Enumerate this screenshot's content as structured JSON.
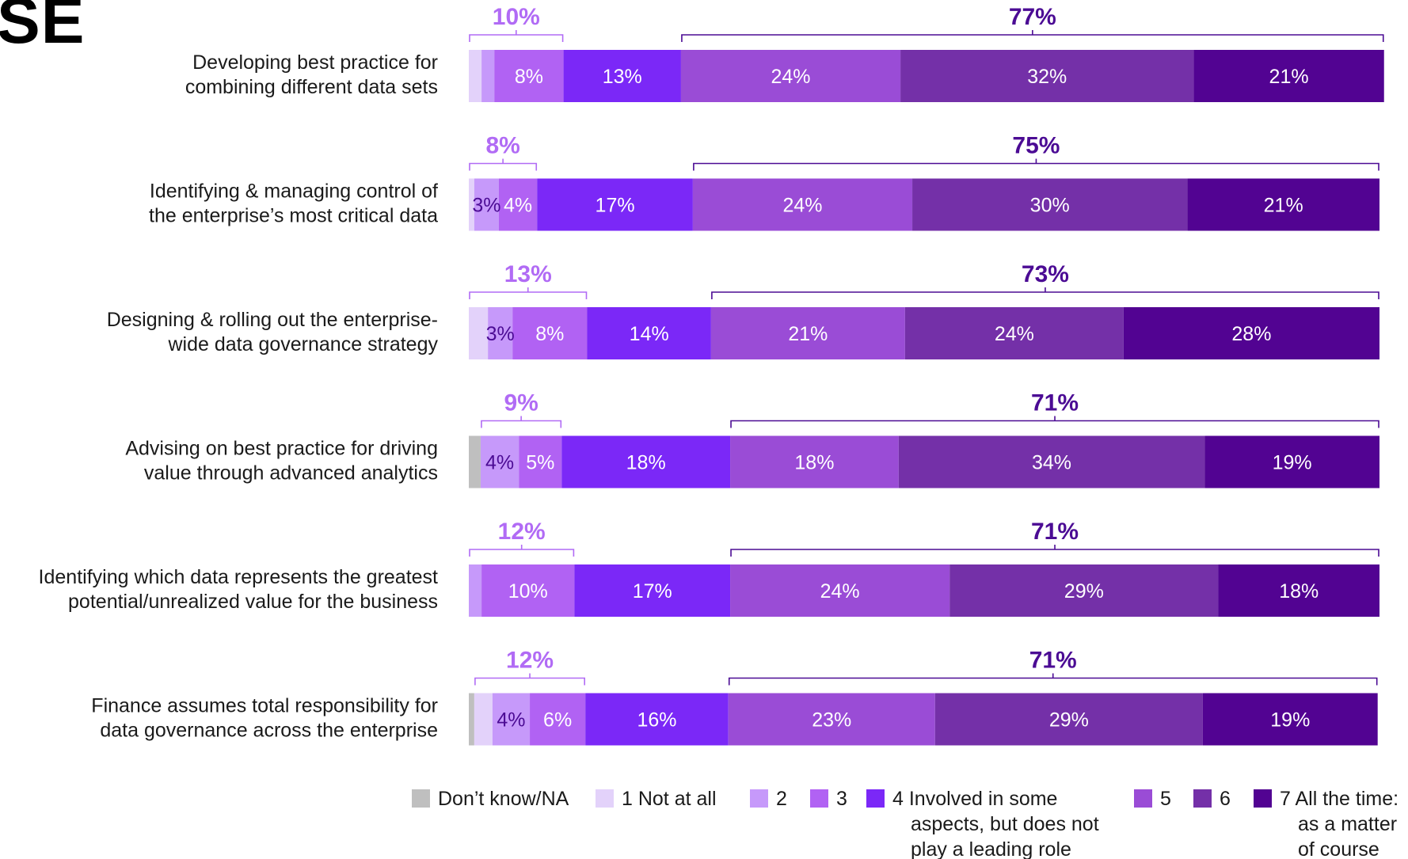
{
  "corner_title": "SE",
  "chart_data": {
    "type": "bar",
    "orientation": "horizontal",
    "stacked": true,
    "categories": [
      [
        "Developing best practice for",
        "combining different data sets"
      ],
      [
        "Identifying & managing control of",
        "the enterprise’s most critical data"
      ],
      [
        "Designing & rolling out the enterprise-",
        "wide data governance strategy"
      ],
      [
        "Advising on best practice for driving",
        "value through advanced analytics"
      ],
      [
        "Identifying which data represents the greatest",
        "potential/unrealized value for the business"
      ],
      [
        "Finance assumes total responsibility for",
        "data governance across the enterprise"
      ]
    ],
    "xlim": [
      0,
      100
    ],
    "series": [
      {
        "name": "Don’t know/NA",
        "color": "#bfbfbf",
        "values": [
          0,
          0,
          0,
          1.3,
          0,
          0.6
        ]
      },
      {
        "name": "1 Not at all",
        "color": "#e3d2fa",
        "values": [
          1.4,
          0.6,
          2.1,
          0,
          0,
          2
        ]
      },
      {
        "name": "2",
        "color": "#c699fa",
        "values": [
          1.4,
          2.7,
          2.7,
          4.2,
          1.4,
          4.1
        ]
      },
      {
        "name": "3",
        "color": "#b162f3",
        "values": [
          7.6,
          4.2,
          8.2,
          4.7,
          10.2,
          6.1
        ]
      },
      {
        "name": "4 Involved in some aspects, but does not play a leading role",
        "color": "#7b28f7",
        "values": [
          12.9,
          17.1,
          13.6,
          18.5,
          17.1,
          15.7
        ]
      },
      {
        "name": "5",
        "color": "#9a4cd6",
        "values": [
          24.1,
          24.1,
          21.3,
          18.5,
          24.1,
          22.7
        ]
      },
      {
        "name": "6",
        "color": "#7430a8",
        "values": [
          32.2,
          30.2,
          24,
          33.6,
          29.5,
          29.4
        ]
      },
      {
        "name": "7 All the time: as a matter of course",
        "color": "#520392",
        "values": [
          20.9,
          21.1,
          28.1,
          19.2,
          17.7,
          19.2
        ]
      }
    ],
    "segment_labels": [
      [
        "",
        "",
        "8%",
        "13%",
        "24%",
        "32%",
        "21%"
      ],
      [
        "",
        "3%",
        "4%",
        "17%",
        "24%",
        "30%",
        "21%"
      ],
      [
        "",
        "3%",
        "8%",
        "14%",
        "21%",
        "24%",
        "28%"
      ],
      [
        "",
        "4%",
        "5%",
        "18%",
        "18%",
        "34%",
        "19%"
      ],
      [
        "",
        "",
        "10%",
        "17%",
        "24%",
        "29%",
        "18%"
      ],
      [
        "",
        "4%",
        "6%",
        "16%",
        "23%",
        "29%",
        "19%"
      ]
    ],
    "bracket_left": {
      "labels": [
        "10%",
        "8%",
        "13%",
        "9%",
        "12%",
        "12%"
      ],
      "color": "#b16bf5"
    },
    "bracket_right": {
      "labels": [
        "77%",
        "75%",
        "73%",
        "71%",
        "71%",
        "71%"
      ],
      "color": "#4b0b94"
    },
    "legend": [
      {
        "lines": [
          "Don’t know/NA"
        ],
        "color": "#bfbfbf"
      },
      {
        "lines": [
          "1 Not at all"
        ],
        "color": "#e3d2fa"
      },
      {
        "lines": [
          "2"
        ],
        "color": "#c699fa"
      },
      {
        "lines": [
          "3"
        ],
        "color": "#b162f3"
      },
      {
        "lines": [
          "4 Involved in some",
          "aspects, but does not",
          "play a leading role"
        ],
        "color": "#7b28f7"
      },
      {
        "lines": [
          "5"
        ],
        "color": "#9a4cd6"
      },
      {
        "lines": [
          "6"
        ],
        "color": "#7430a8"
      },
      {
        "lines": [
          "7 All the time:",
          "as a matter",
          "of course"
        ],
        "color": "#520392"
      }
    ]
  }
}
